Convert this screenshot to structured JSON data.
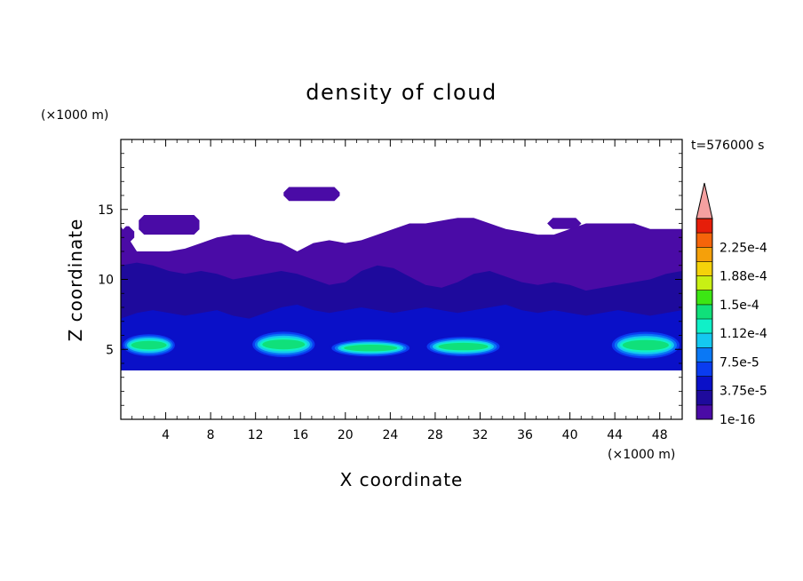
{
  "chart_data": {
    "type": "heatmap",
    "title": "density of cloud",
    "xlabel": "X coordinate",
    "ylabel": "Z coordinate",
    "x_unit": "(×1000 m)",
    "y_unit": "(×1000 m)",
    "time_label": "t=576000 s",
    "xlim": [
      0,
      50
    ],
    "ylim": [
      0,
      20
    ],
    "x_ticks": [
      "4",
      "8",
      "12",
      "16",
      "20",
      "24",
      "28",
      "32",
      "36",
      "40",
      "44",
      "48"
    ],
    "y_ticks": [
      "5",
      "10",
      "15"
    ],
    "colorbar": {
      "labels": [
        "1e-16",
        "3.75e-5",
        "7.5e-5",
        "1.12e-4",
        "1.5e-4",
        "1.88e-4",
        "2.25e-4"
      ],
      "levels": [
        1e-16,
        1.875e-05,
        3.75e-05,
        5.625e-05,
        7.5e-05,
        9.375e-05,
        0.0001125,
        0.00013125,
        0.00015,
        0.00016875,
        0.0001875,
        0.00020625,
        0.000225,
        0.00024375
      ],
      "colors": [
        "#4a0ba6",
        "#1e0a9c",
        "#0a10c8",
        "#0a3cf0",
        "#0a78f5",
        "#14c8f0",
        "#10f0c8",
        "#10e07a",
        "#3ce614",
        "#c8f014",
        "#f5d20a",
        "#f5a00a",
        "#f5640a",
        "#e61e0a"
      ],
      "extend_color": "#f5a0a0"
    },
    "cloud_regions": {
      "base_km": 3.5,
      "layers": [
        {
          "level": 0,
          "top_km": [
            13.8,
            12.0,
            12.0,
            12.0,
            12.2,
            12.6,
            13.0,
            13.2,
            13.2,
            12.8,
            12.6,
            12.0,
            12.6,
            12.8,
            12.6,
            12.8,
            13.2,
            13.6,
            14.0,
            14.0,
            14.2,
            14.4,
            14.4,
            14.0,
            13.6,
            13.4,
            13.2,
            13.2,
            13.6,
            14.0,
            14.0,
            14.0,
            14.0,
            13.6,
            13.6,
            13.6
          ]
        },
        {
          "level": 1,
          "top_km": [
            11.0,
            11.2,
            11.0,
            10.6,
            10.4,
            10.6,
            10.4,
            10.0,
            10.2,
            10.4,
            10.6,
            10.4,
            10.0,
            9.6,
            9.8,
            10.6,
            11.0,
            10.8,
            10.2,
            9.6,
            9.4,
            9.8,
            10.4,
            10.6,
            10.2,
            9.8,
            9.6,
            9.8,
            9.6,
            9.2,
            9.4,
            9.6,
            9.8,
            10.0,
            10.4,
            10.6
          ]
        },
        {
          "level": 2,
          "top_km": [
            7.2,
            7.6,
            7.8,
            7.6,
            7.4,
            7.6,
            7.8,
            7.4,
            7.2,
            7.6,
            8.0,
            8.2,
            7.8,
            7.6,
            7.8,
            8.0,
            7.8,
            7.6,
            7.8,
            8.0,
            7.8,
            7.6,
            7.8,
            8.0,
            8.2,
            7.8,
            7.6,
            7.8,
            7.6,
            7.4,
            7.6,
            7.8,
            7.6,
            7.4,
            7.6,
            7.8
          ]
        }
      ],
      "core_bands": [
        {
          "x_km": [
            0.0,
            5.0
          ],
          "z_km": [
            4.4,
            6.2
          ]
        },
        {
          "x_km": [
            11.5,
            17.5
          ],
          "z_km": [
            4.3,
            6.4
          ]
        },
        {
          "x_km": [
            18.5,
            26.0
          ],
          "z_km": [
            4.4,
            5.8
          ]
        },
        {
          "x_km": [
            27.0,
            34.0
          ],
          "z_km": [
            4.4,
            6.0
          ]
        },
        {
          "x_km": [
            43.5,
            50.0
          ],
          "z_km": [
            4.2,
            6.4
          ]
        }
      ],
      "upper_patches": [
        {
          "x_km": [
            0.0,
            1.2
          ],
          "z_km": [
            12.6,
            13.8
          ]
        },
        {
          "x_km": [
            1.6,
            7.0
          ],
          "z_km": [
            13.2,
            14.6
          ]
        },
        {
          "x_km": [
            14.5,
            19.5
          ],
          "z_km": [
            15.6,
            16.6
          ]
        },
        {
          "x_km": [
            38.0,
            41.0
          ],
          "z_km": [
            13.6,
            14.4
          ]
        }
      ]
    }
  }
}
